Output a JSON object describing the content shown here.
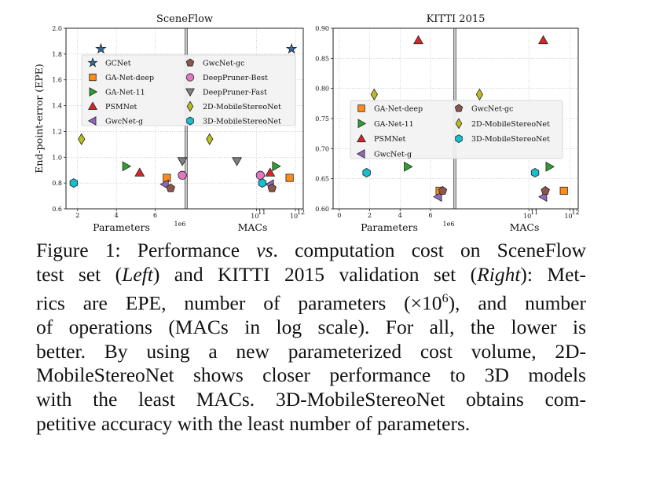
{
  "chart_data": [
    {
      "type": "scatter",
      "title": "SceneFlow",
      "ylabel": "End-point-error (EPE)",
      "ylim": [
        0.6,
        2.0
      ],
      "yticks": [
        "0.6",
        "0.8",
        "1.0",
        "1.2",
        "1.4",
        "1.6",
        "1.8",
        "2.0"
      ],
      "left_panel": {
        "xlabel": "Parameters",
        "offset_label": "1e6",
        "xlim": [
          1.4,
          7.6
        ],
        "xticks": [
          "2",
          "4",
          "6"
        ]
      },
      "right_panel": {
        "xlabel": "MACs",
        "scale": "log",
        "xlim_exp": [
          9.2,
          12.2
        ],
        "xticks": [
          "10",
          "10"
        ],
        "xtick_exp": [
          "11",
          "12"
        ]
      },
      "legend": {
        "placement": "upper-center",
        "entries": [
          "GCNet",
          "GwcNet-gc",
          "GA-Net-deep",
          "DeepPruner-Best",
          "GA-Net-11",
          "DeepPruner-Fast",
          "PSMNet",
          "2D-MobileStereoNet",
          "GwcNet-g",
          "3D-MobileStereoNet"
        ]
      },
      "series": [
        {
          "name": "GCNet",
          "marker": "star",
          "color": "#2f6ca3",
          "params": 3.2,
          "macs_log10": 11.9,
          "epe": 1.84
        },
        {
          "name": "GA-Net-deep",
          "marker": "square",
          "color": "#ff8c1a",
          "params": 6.6,
          "macs_log10": 11.85,
          "epe": 0.84
        },
        {
          "name": "GA-Net-11",
          "marker": "triangle-right",
          "color": "#2ca02c",
          "params": 4.5,
          "macs_log10": 11.5,
          "epe": 0.93
        },
        {
          "name": "PSMNet",
          "marker": "triangle-up",
          "color": "#d62728",
          "params": 5.2,
          "macs_log10": 11.35,
          "epe": 0.88
        },
        {
          "name": "GwcNet-g",
          "marker": "triangle-left",
          "color": "#9467bd",
          "params": 6.5,
          "macs_log10": 11.35,
          "epe": 0.79
        },
        {
          "name": "GwcNet-gc",
          "marker": "pentagon",
          "color": "#8c564b",
          "params": 6.8,
          "macs_log10": 11.4,
          "epe": 0.76
        },
        {
          "name": "DeepPruner-Best",
          "marker": "circle",
          "color": "#e377c2",
          "params": 7.4,
          "macs_log10": 11.1,
          "epe": 0.86
        },
        {
          "name": "DeepPruner-Fast",
          "marker": "triangle-down",
          "color": "#7f7f7f",
          "params": 7.4,
          "macs_log10": 10.5,
          "epe": 0.97
        },
        {
          "name": "2D-MobileStereoNet",
          "marker": "diamond",
          "color": "#bcbd22",
          "params": 2.2,
          "macs_log10": 9.8,
          "epe": 1.14
        },
        {
          "name": "3D-MobileStereoNet",
          "marker": "hexagon",
          "color": "#17becf",
          "params": 1.8,
          "macs_log10": 11.15,
          "epe": 0.8
        }
      ]
    },
    {
      "type": "scatter",
      "title": "KITTI 2015",
      "ylim": [
        0.6,
        0.9
      ],
      "yticks": [
        "0.60",
        "0.65",
        "0.70",
        "0.75",
        "0.80",
        "0.85",
        "0.90"
      ],
      "left_panel": {
        "xlabel": "Parameters",
        "offset_label": "1e6",
        "xlim": [
          -0.4,
          7.6
        ],
        "xticks": [
          "0",
          "2",
          "4",
          "6"
        ]
      },
      "right_panel": {
        "xlabel": "MACs",
        "scale": "log",
        "xlim_exp": [
          9.2,
          12.2
        ],
        "xticks": [
          "10",
          "10"
        ],
        "xtick_exp": [
          "11",
          "12"
        ]
      },
      "legend": {
        "placement": "center",
        "entries": [
          "GA-Net-deep",
          "GwcNet-gc",
          "GA-Net-11",
          "2D-MobileStereoNet",
          "PSMNet",
          "3D-MobileStereoNet",
          "GwcNet-g"
        ]
      },
      "series": [
        {
          "name": "GA-Net-deep",
          "marker": "square",
          "color": "#ff8c1a",
          "params": 6.6,
          "macs_log10": 11.85,
          "epe": 0.63
        },
        {
          "name": "GA-Net-11",
          "marker": "triangle-right",
          "color": "#2ca02c",
          "params": 4.5,
          "macs_log10": 11.5,
          "epe": 0.67
        },
        {
          "name": "PSMNet",
          "marker": "triangle-up",
          "color": "#d62728",
          "params": 5.2,
          "macs_log10": 11.35,
          "epe": 0.88
        },
        {
          "name": "GwcNet-g",
          "marker": "triangle-left",
          "color": "#9467bd",
          "params": 6.5,
          "macs_log10": 11.35,
          "epe": 0.62
        },
        {
          "name": "GwcNet-gc",
          "marker": "pentagon",
          "color": "#8c564b",
          "params": 6.8,
          "macs_log10": 11.4,
          "epe": 0.63
        },
        {
          "name": "2D-MobileStereoNet",
          "marker": "diamond",
          "color": "#bcbd22",
          "params": 2.3,
          "macs_log10": 9.8,
          "epe": 0.79
        },
        {
          "name": "3D-MobileStereoNet",
          "marker": "hexagon",
          "color": "#17becf",
          "params": 1.8,
          "macs_log10": 11.15,
          "epe": 0.66
        }
      ]
    }
  ],
  "caption": {
    "lines": [
      [
        "Figure 1: Performance ",
        "vs",
        ". computation cost on SceneFlow"
      ],
      [
        "test set (",
        "Left",
        ") and KITTI 2015 validation set (",
        "Right",
        "): Met-"
      ],
      [
        "rics are EPE, number of parameters (×10",
        "6",
        "), and number"
      ],
      [
        "of operations (MACs in log scale).  For all, the lower is"
      ],
      [
        "better.  By using a new parameterized cost volume, 2D-"
      ],
      [
        "MobileStereoNet shows closer performance to 3D models"
      ],
      [
        "with the least MACs.  3D-MobileStereoNet obtains com-"
      ],
      [
        "petitive accuracy with the least number of parameters."
      ]
    ]
  }
}
